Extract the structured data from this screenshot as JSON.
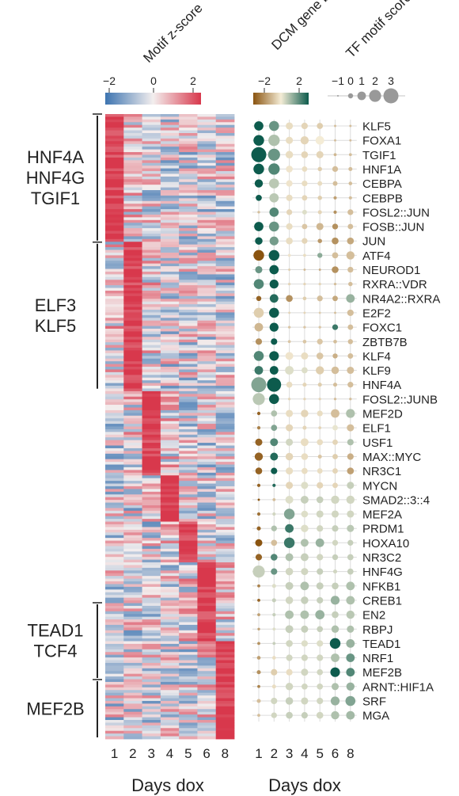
{
  "chart_data": [
    {
      "type": "heatmap",
      "title": "Motif z-score",
      "xlabel": "Days dox",
      "categories": [
        "1",
        "2",
        "3",
        "4",
        "5",
        "6",
        "8"
      ],
      "colorbar": {
        "ticks": [
          "−2",
          "0",
          "2"
        ],
        "range": [
          -2,
          2
        ],
        "low_color": "#3d74b0",
        "mid_color": "#f3eeee",
        "high_color": "#d8384c"
      },
      "row_groups": [
        {
          "lines": [
            "HNF4A",
            "HNF4G",
            "TGIF1"
          ],
          "fraction": 0.205
        },
        {
          "lines": [
            "ELF3",
            "KLF5"
          ],
          "fraction": 0.237
        },
        {
          "lines": [
            "TEAD1",
            "TCF4"
          ],
          "fraction": 0.123
        },
        {
          "lines": [
            "MEF2B"
          ],
          "fraction": 0.095
        }
      ],
      "peak_blocks": [
        {
          "column": "1",
          "fraction": 0.205
        },
        {
          "column": "2",
          "fraction": 0.237
        },
        {
          "column": "3",
          "fraction": 0.137
        },
        {
          "column": "4",
          "fraction": 0.075
        },
        {
          "column": "5",
          "fraction": 0.065
        },
        {
          "column": "6",
          "fraction": 0.123
        },
        {
          "column": "8",
          "fraction": 0.095
        }
      ]
    },
    {
      "type": "scatter",
      "xlabel": "Days dox",
      "categories": [
        "1",
        "2",
        "3",
        "4",
        "5",
        "6",
        "8"
      ],
      "color_legend": {
        "title": "DCM gene body z-score",
        "ticks": [
          "−2",
          "2"
        ],
        "range": [
          -2,
          2
        ],
        "low_color": "#8a5410",
        "mid_color": "#f4ecd6",
        "high_color": "#0d5b4d"
      },
      "size_legend": {
        "title": "TF motif score",
        "ticks": [
          "−1",
          "0",
          "1",
          "2",
          "3"
        ],
        "values": [
          -1,
          0,
          1,
          2,
          3
        ],
        "color": "#999999"
      },
      "rows": [
        "KLF5",
        "FOXA1",
        "TGIF1",
        "HNF1A",
        "CEBPA",
        "CEBPB",
        "FOSL2::JUN",
        "FOSB::JUN",
        "JUN",
        "ATF4",
        "NEURODI",
        "RXRA::VDR",
        "NR4A2::RXRA",
        "E2F2",
        "FOXC1",
        "ZBTB7B",
        "KLF4",
        "KLF9",
        "HNF4A",
        "FOSL2::JUNB",
        "MEF2D",
        "ELF1",
        "USF1",
        "MAX::MYC",
        "NR3C1",
        "MYCN",
        "SMAD2::3::4",
        "MEF2A",
        "PRDM1",
        "HOXA10",
        "NR3C2",
        "HNF4G",
        "NFKB1",
        "CREB1",
        "EN2",
        "RBPJ",
        "TEAD1",
        "NRF1",
        "MEF2B",
        "ARNT::HIF1A",
        "SRF",
        "MGA"
      ],
      "rows_display": [
        "KLF5",
        "FOXA1",
        "TGIF1",
        "HNF1A",
        "CEBPA",
        "CEBPB",
        "FOSL2::JUN",
        "FOSB::JUN",
        "JUN",
        "ATF4",
        "NEUROD1",
        "RXRA::VDR",
        "NR4A2::RXRA",
        "E2F2",
        "FOXC1",
        "ZBTB7B",
        "KLF4",
        "KLF9",
        "HNF4A",
        "FOSL2::JUNB",
        "MEF2D",
        "ELF1",
        "USF1",
        "MAX::MYC",
        "NR3C1",
        "MYCN",
        "SMAD2::3::4",
        "MEF2A",
        "PRDM1",
        "HOXA10",
        "NR3C2",
        "HNF4G",
        "NFKB1",
        "CREB1",
        "EN2",
        "RBPJ",
        "TEAD1",
        "NRF1",
        "MEF2B",
        "ARNT::HIF1A",
        "SRF",
        "MGA"
      ],
      "motif_score": [
        [
          1.2,
          1.4,
          0.6,
          0.4,
          0.3,
          -0.8,
          -0.8
        ],
        [
          1.6,
          1.8,
          0.6,
          0.9,
          1.0,
          -0.8,
          -0.8
        ],
        [
          3.0,
          2.0,
          0.7,
          0.5,
          0.6,
          -0.6,
          -0.6
        ],
        [
          1.6,
          1.8,
          0.5,
          0.1,
          -0.2,
          0.2,
          -0.3
        ],
        [
          0.9,
          1.4,
          0.4,
          0.2,
          -0.1,
          -0.1,
          -0.4
        ],
        [
          0.3,
          1.2,
          0.4,
          0.1,
          -0.2,
          -0.5,
          -0.5
        ],
        [
          -0.7,
          1.2,
          0.2,
          -0.1,
          -0.3,
          -0.5,
          0.2
        ],
        [
          1.2,
          1.4,
          0.4,
          0.1,
          0.6,
          0.2,
          0.1
        ],
        [
          0.7,
          1.1,
          0.5,
          0.2,
          -0.2,
          0.5,
          0.5
        ],
        [
          1.6,
          1.6,
          -0.6,
          -0.6,
          0.0,
          0.3,
          0.9
        ],
        [
          0.6,
          1.2,
          -0.8,
          -0.8,
          -0.8,
          0.5,
          0.2
        ],
        [
          1.4,
          1.1,
          -0.7,
          -0.7,
          -0.7,
          -0.7,
          -0.2
        ],
        [
          0.0,
          1.0,
          0.5,
          -0.4,
          0.2,
          0.1,
          1.0
        ],
        [
          1.4,
          1.4,
          -0.8,
          -0.8,
          -0.8,
          -0.8,
          0.4
        ],
        [
          1.0,
          1.1,
          -0.7,
          -0.7,
          -0.7,
          0.2,
          0.1
        ],
        [
          0.4,
          0.4,
          -0.6,
          -0.4,
          0.2,
          -0.4,
          0.0
        ],
        [
          1.4,
          1.3,
          0.8,
          0.6,
          0.5,
          0.0,
          0.1
        ],
        [
          1.0,
          1.0,
          1.0,
          0.3,
          0.9,
          0.7,
          0.6
        ],
        [
          3.0,
          2.6,
          0.3,
          -0.3,
          -0.3,
          -0.3,
          0.2
        ],
        [
          2.0,
          1.4,
          -0.7,
          -0.7,
          -0.7,
          -0.7,
          -0.7
        ],
        [
          -0.5,
          0.3,
          0.6,
          0.7,
          0.2,
          1.0,
          1.1
        ],
        [
          -0.5,
          0.3,
          0.6,
          -0.3,
          -0.6,
          0.1,
          0.6
        ],
        [
          0.6,
          0.8,
          0.6,
          0.8,
          0.3,
          0.1,
          0.4
        ],
        [
          0.9,
          0.8,
          0.7,
          0.5,
          -0.3,
          0.1,
          0.4
        ],
        [
          0.5,
          0.4,
          0.6,
          0.3,
          0.1,
          0.1,
          0.5
        ],
        [
          -0.5,
          -0.5,
          0.6,
          0.6,
          0.4,
          0.1,
          0.6
        ],
        [
          -0.8,
          -0.6,
          0.8,
          0.8,
          0.5,
          0.9,
          0.9
        ],
        [
          -0.5,
          -0.5,
          1.6,
          0.5,
          0.6,
          0.6,
          0.6
        ],
        [
          -0.3,
          0.2,
          1.0,
          0.7,
          0.4,
          0.4,
          0.6
        ],
        [
          0.6,
          0.3,
          1.6,
          0.8,
          1.0,
          0.2,
          0.2
        ],
        [
          0.4,
          0.5,
          0.8,
          0.8,
          0.4,
          0.2,
          0.3
        ],
        [
          2.0,
          0.4,
          0.7,
          0.6,
          0.4,
          -0.3,
          0.3
        ],
        [
          -0.6,
          -0.3,
          0.8,
          1.0,
          0.6,
          0.5,
          1.0
        ],
        [
          -0.6,
          -0.3,
          0.7,
          0.7,
          0.4,
          1.1,
          1.0
        ],
        [
          -0.6,
          -0.5,
          1.0,
          1.0,
          1.2,
          0.5,
          0.9
        ],
        [
          -0.7,
          -0.6,
          0.8,
          0.6,
          0.3,
          0.7,
          0.6
        ],
        [
          -0.6,
          -0.6,
          0.5,
          0.4,
          0.4,
          1.6,
          1.0
        ],
        [
          -0.4,
          -0.4,
          0.4,
          0.4,
          0.4,
          1.0,
          1.0
        ],
        [
          -0.3,
          0.4,
          0.4,
          0.6,
          0.3,
          1.3,
          1.0
        ],
        [
          -0.6,
          -0.3,
          0.7,
          0.3,
          0.3,
          0.6,
          0.9
        ],
        [
          -0.3,
          0.4,
          0.7,
          0.6,
          0.4,
          1.1,
          1.4
        ],
        [
          -0.6,
          0.2,
          0.5,
          0.4,
          0.5,
          0.9,
          1.0
        ]
      ],
      "gene_z": [
        [
          2.5,
          1.2,
          -0.2,
          -0.3,
          -0.4,
          -0.6,
          -0.6
        ],
        [
          2.6,
          0.6,
          -0.2,
          -0.3,
          0.0,
          -0.6,
          -0.6
        ],
        [
          2.2,
          1.2,
          -0.2,
          -0.3,
          -0.3,
          -0.7,
          -0.6
        ],
        [
          2.0,
          1.4,
          -0.1,
          -0.2,
          -0.4,
          -0.6,
          -0.6
        ],
        [
          2.2,
          0.5,
          -0.1,
          -0.2,
          -0.2,
          -0.6,
          -0.6
        ],
        [
          2.4,
          0.5,
          -0.2,
          -0.3,
          -0.4,
          -1.0,
          -0.6
        ],
        [
          -0.6,
          1.4,
          -0.3,
          0.2,
          -0.3,
          -1.2,
          -0.6
        ],
        [
          2.4,
          1.2,
          -0.2,
          -0.5,
          -0.7,
          -1.2,
          -0.6
        ],
        [
          2.3,
          1.1,
          -0.2,
          -0.3,
          -1.1,
          -1.2,
          -0.9
        ],
        [
          -2.0,
          2.4,
          -0.1,
          -0.2,
          0.9,
          -0.6,
          -0.6
        ],
        [
          1.2,
          2.4,
          -0.4,
          -0.6,
          -0.8,
          -1.2,
          -0.6
        ],
        [
          1.4,
          2.6,
          -0.3,
          -0.3,
          -0.3,
          -0.6,
          -0.6
        ],
        [
          -1.8,
          1.8,
          -1.2,
          -0.4,
          -0.6,
          -0.9,
          0.8
        ],
        [
          -0.4,
          2.4,
          -0.3,
          -0.3,
          -0.4,
          -0.6,
          -0.6
        ],
        [
          -0.7,
          2.4,
          -0.5,
          -0.5,
          -0.5,
          1.6,
          -0.6
        ],
        [
          -1.2,
          2.2,
          -0.5,
          -0.5,
          -0.5,
          -0.6,
          -0.6
        ],
        [
          1.4,
          2.4,
          -0.1,
          -0.2,
          -0.5,
          -0.8,
          -0.6
        ],
        [
          1.6,
          2.4,
          0.2,
          0.2,
          -0.4,
          -0.6,
          -0.6
        ],
        [
          1.0,
          2.8,
          -0.2,
          -0.3,
          -0.4,
          -0.6,
          -0.6
        ],
        [
          0.5,
          2.4,
          -0.3,
          -0.3,
          -0.3,
          -0.6,
          -0.6
        ],
        [
          -1.8,
          0.6,
          -0.2,
          -0.3,
          -0.2,
          -0.6,
          0.6
        ],
        [
          -1.4,
          1.0,
          -0.3,
          -0.3,
          -0.3,
          0.1,
          -0.6
        ],
        [
          -1.8,
          1.4,
          0.3,
          -0.2,
          -0.2,
          -0.3,
          0.6
        ],
        [
          -1.8,
          1.8,
          -0.3,
          -0.2,
          -0.5,
          -0.4,
          -0.8
        ],
        [
          -1.8,
          2.4,
          -0.2,
          -0.2,
          -0.2,
          -0.3,
          -1.0
        ],
        [
          -1.8,
          1.8,
          -0.3,
          0.2,
          -0.3,
          -0.3,
          0.4
        ],
        [
          -2.0,
          -0.6,
          0.2,
          0.4,
          0.4,
          0.3,
          0.3
        ],
        [
          -1.6,
          0.3,
          1.0,
          0.2,
          0.3,
          0.3,
          0.3
        ],
        [
          -1.8,
          0.6,
          1.6,
          0.2,
          0.3,
          0.4,
          0.5
        ],
        [
          -2.0,
          -0.6,
          1.6,
          0.6,
          0.8,
          0.3,
          0.4
        ],
        [
          -1.8,
          1.4,
          0.6,
          0.4,
          0.3,
          0.4,
          0.4
        ],
        [
          0.4,
          1.2,
          0.3,
          0.3,
          0.4,
          0.3,
          0.4
        ],
        [
          -1.4,
          0.2,
          0.4,
          0.6,
          0.4,
          0.4,
          0.6
        ],
        [
          -1.8,
          0.4,
          0.3,
          0.4,
          0.4,
          0.8,
          0.6
        ],
        [
          -1.0,
          0.4,
          0.6,
          0.6,
          0.8,
          0.4,
          0.5
        ],
        [
          -1.0,
          0.2,
          0.4,
          0.4,
          0.4,
          0.6,
          0.6
        ],
        [
          -1.2,
          0.4,
          0.3,
          0.2,
          0.2,
          2.6,
          0.8
        ],
        [
          -1.0,
          -0.2,
          0.3,
          0.3,
          0.3,
          0.6,
          1.2
        ],
        [
          -1.2,
          -0.4,
          -0.2,
          0.3,
          0.3,
          2.2,
          1.4
        ],
        [
          -1.4,
          -0.2,
          0.3,
          0.3,
          0.3,
          0.6,
          0.8
        ],
        [
          -0.6,
          0.3,
          0.4,
          0.3,
          0.3,
          0.8,
          1.0
        ],
        [
          -0.6,
          0.3,
          0.4,
          0.4,
          0.3,
          0.6,
          0.7
        ]
      ]
    }
  ]
}
